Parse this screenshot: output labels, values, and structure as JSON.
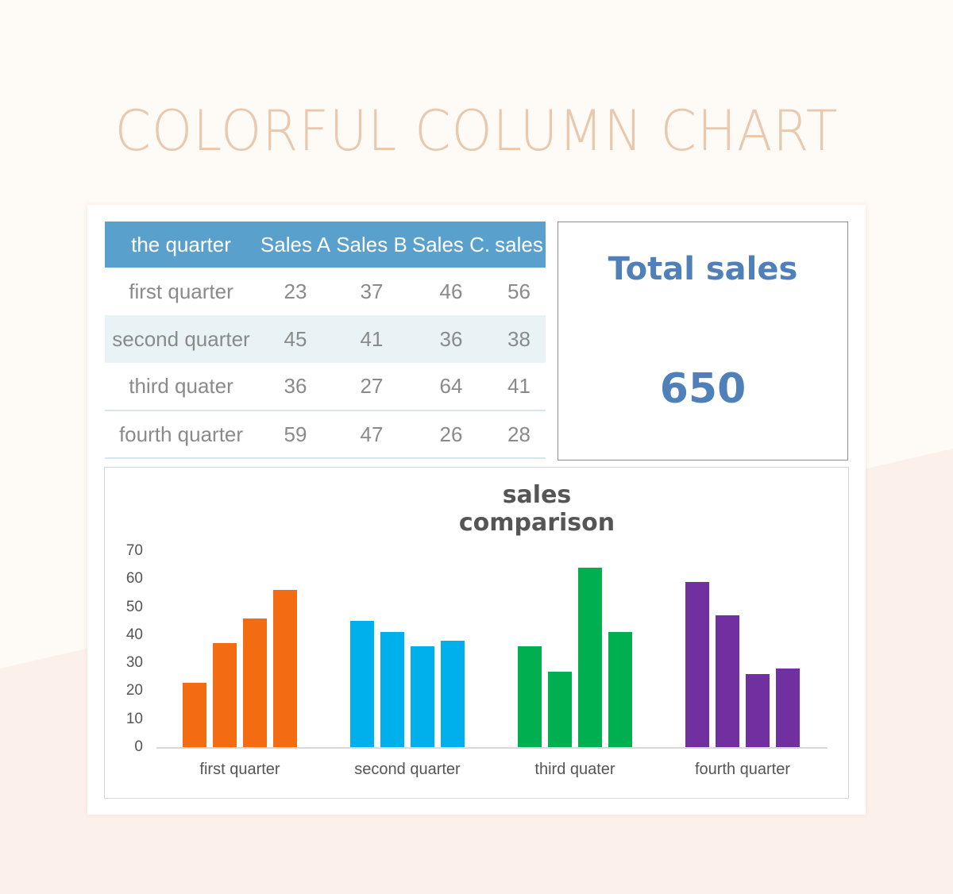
{
  "page": {
    "title": "COLORFUL COLUMN CHART",
    "title_color": "#e9c9ae",
    "background": "#fefaf6"
  },
  "table": {
    "header_color": "#5aa0cc",
    "headers": [
      "the quarter",
      "Sales A",
      "Sales B",
      "Sales C.",
      "sales"
    ],
    "rows": [
      {
        "quarter": "first quarter",
        "values": [
          "23",
          "37",
          "46",
          "56"
        ]
      },
      {
        "quarter": "second quarter",
        "values": [
          "45",
          "41",
          "36",
          "38"
        ]
      },
      {
        "quarter": "third quater",
        "values": [
          "36",
          "27",
          "64",
          "41"
        ]
      },
      {
        "quarter": "fourth quarter",
        "values": [
          "59",
          "47",
          "26",
          "28"
        ]
      }
    ]
  },
  "total": {
    "label": "Total sales",
    "value": "650",
    "color": "#4f80ba"
  },
  "chart_data": {
    "type": "bar",
    "title": "sales comparison",
    "xlabel": "",
    "ylabel": "",
    "ylim": [
      0,
      70
    ],
    "yticks": [
      "0",
      "10",
      "20",
      "30",
      "40",
      "50",
      "60",
      "70"
    ],
    "grid": false,
    "legend": "none",
    "categories": [
      "first quarter",
      "second quarter",
      "third quater",
      "fourth quarter"
    ],
    "category_colors": [
      "#f46c12",
      "#00b0ec",
      "#00af50",
      "#7030a0"
    ],
    "series": [
      {
        "name": "Sales A",
        "values": [
          23,
          45,
          36,
          59
        ]
      },
      {
        "name": "Sales B",
        "values": [
          37,
          41,
          27,
          47
        ]
      },
      {
        "name": "Sales C.",
        "values": [
          46,
          36,
          64,
          26
        ]
      },
      {
        "name": "sales",
        "values": [
          56,
          38,
          41,
          28
        ]
      }
    ]
  }
}
